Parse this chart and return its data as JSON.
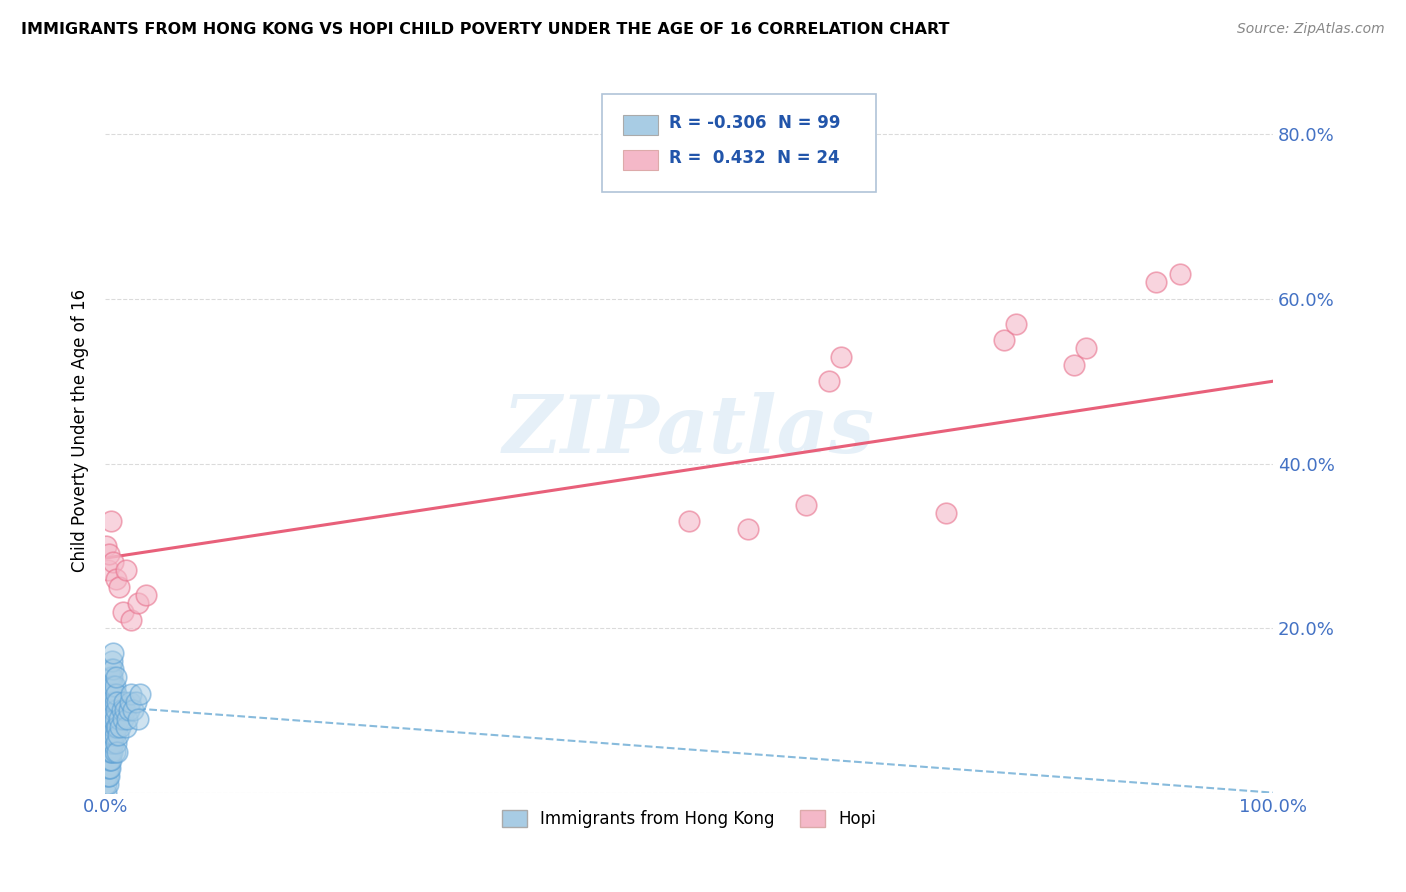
{
  "title": "IMMIGRANTS FROM HONG KONG VS HOPI CHILD POVERTY UNDER THE AGE OF 16 CORRELATION CHART",
  "source": "Source: ZipAtlas.com",
  "ylabel": "Child Poverty Under the Age of 16",
  "xlim": [
    0,
    1.0
  ],
  "ylim": [
    0,
    0.88
  ],
  "xtick_vals": [
    0.0,
    0.2,
    0.4,
    0.6,
    0.8,
    1.0
  ],
  "xticklabels": [
    "0.0%",
    "",
    "",
    "",
    "",
    "100.0%"
  ],
  "ytick_vals": [
    0.0,
    0.2,
    0.4,
    0.6,
    0.8
  ],
  "yticklabels_right": [
    "",
    "20.0%",
    "40.0%",
    "60.0%",
    "80.0%"
  ],
  "legend_labels": [
    "Immigrants from Hong Kong",
    "Hopi"
  ],
  "blue_color": "#a8cce4",
  "blue_edge_color": "#5a9fd4",
  "pink_color": "#f4b8c8",
  "pink_edge_color": "#e8738e",
  "blue_line_color": "#6aaad4",
  "pink_line_color": "#e8607a",
  "R_blue": -0.306,
  "N_blue": 99,
  "R_pink": 0.432,
  "N_pink": 24,
  "watermark": "ZIPatlas",
  "blue_trend_x": [
    0.0,
    1.0
  ],
  "blue_trend_y": [
    0.105,
    0.0
  ],
  "pink_trend_x": [
    0.0,
    1.0
  ],
  "pink_trend_y": [
    0.285,
    0.5
  ],
  "blue_scatter_x": [
    0.001,
    0.001,
    0.001,
    0.001,
    0.001,
    0.001,
    0.001,
    0.001,
    0.001,
    0.001,
    0.002,
    0.002,
    0.002,
    0.002,
    0.002,
    0.002,
    0.002,
    0.002,
    0.002,
    0.002,
    0.003,
    0.003,
    0.003,
    0.003,
    0.003,
    0.003,
    0.003,
    0.003,
    0.003,
    0.003,
    0.004,
    0.004,
    0.004,
    0.004,
    0.004,
    0.004,
    0.004,
    0.004,
    0.004,
    0.004,
    0.005,
    0.005,
    0.005,
    0.005,
    0.005,
    0.005,
    0.005,
    0.005,
    0.005,
    0.005,
    0.006,
    0.006,
    0.006,
    0.006,
    0.006,
    0.006,
    0.006,
    0.006,
    0.006,
    0.006,
    0.007,
    0.007,
    0.007,
    0.007,
    0.007,
    0.007,
    0.007,
    0.007,
    0.007,
    0.007,
    0.008,
    0.008,
    0.008,
    0.008,
    0.008,
    0.009,
    0.009,
    0.009,
    0.009,
    0.009,
    0.01,
    0.01,
    0.01,
    0.011,
    0.012,
    0.013,
    0.014,
    0.015,
    0.016,
    0.017,
    0.018,
    0.019,
    0.02,
    0.021,
    0.022,
    0.024,
    0.026,
    0.028,
    0.03
  ],
  "blue_scatter_y": [
    0.0,
    0.01,
    0.02,
    0.03,
    0.04,
    0.05,
    0.06,
    0.07,
    0.08,
    0.09,
    0.01,
    0.02,
    0.03,
    0.04,
    0.05,
    0.06,
    0.07,
    0.08,
    0.1,
    0.12,
    0.02,
    0.03,
    0.04,
    0.05,
    0.06,
    0.07,
    0.08,
    0.09,
    0.11,
    0.13,
    0.03,
    0.04,
    0.05,
    0.06,
    0.07,
    0.08,
    0.09,
    0.1,
    0.12,
    0.14,
    0.04,
    0.05,
    0.06,
    0.07,
    0.08,
    0.09,
    0.1,
    0.11,
    0.13,
    0.15,
    0.05,
    0.06,
    0.07,
    0.08,
    0.09,
    0.1,
    0.11,
    0.12,
    0.14,
    0.16,
    0.06,
    0.07,
    0.08,
    0.09,
    0.1,
    0.11,
    0.12,
    0.13,
    0.15,
    0.17,
    0.05,
    0.07,
    0.09,
    0.11,
    0.13,
    0.06,
    0.08,
    0.1,
    0.12,
    0.14,
    0.05,
    0.08,
    0.11,
    0.07,
    0.09,
    0.08,
    0.1,
    0.09,
    0.11,
    0.1,
    0.08,
    0.09,
    0.1,
    0.11,
    0.12,
    0.1,
    0.11,
    0.09,
    0.12
  ],
  "pink_scatter_x": [
    0.001,
    0.002,
    0.003,
    0.005,
    0.007,
    0.009,
    0.012,
    0.015,
    0.018,
    0.022,
    0.028,
    0.035,
    0.5,
    0.55,
    0.6,
    0.62,
    0.63,
    0.72,
    0.77,
    0.78,
    0.83,
    0.84,
    0.9,
    0.92
  ],
  "pink_scatter_y": [
    0.3,
    0.27,
    0.29,
    0.33,
    0.28,
    0.26,
    0.25,
    0.22,
    0.27,
    0.21,
    0.23,
    0.24,
    0.33,
    0.32,
    0.35,
    0.5,
    0.53,
    0.34,
    0.55,
    0.57,
    0.52,
    0.54,
    0.62,
    0.63
  ]
}
